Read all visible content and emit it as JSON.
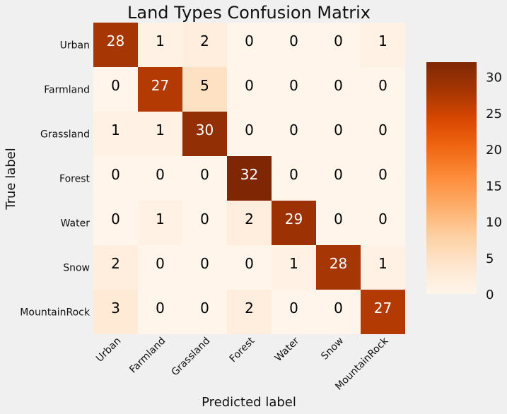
{
  "chart_data": {
    "type": "heatmap",
    "title": "Land Types Confusion Matrix",
    "xlabel": "Predicted label",
    "ylabel": "True label",
    "x_categories": [
      "Urban",
      "Farmland",
      "Grassland",
      "Forest",
      "Water",
      "Snow",
      "MountainRock"
    ],
    "y_categories": [
      "Urban",
      "Farmland",
      "Grassland",
      "Forest",
      "Water",
      "Snow",
      "MountainRock"
    ],
    "values": [
      [
        28,
        1,
        2,
        0,
        0,
        0,
        1
      ],
      [
        0,
        27,
        5,
        0,
        0,
        0,
        0
      ],
      [
        1,
        1,
        30,
        0,
        0,
        0,
        0
      ],
      [
        0,
        0,
        0,
        32,
        0,
        0,
        0
      ],
      [
        0,
        1,
        0,
        2,
        29,
        0,
        0
      ],
      [
        2,
        0,
        0,
        0,
        1,
        28,
        1
      ],
      [
        3,
        0,
        0,
        2,
        0,
        0,
        27
      ]
    ],
    "colormap": "Oranges",
    "vmin": 0,
    "vmax": 32,
    "colorbar_ticks": [
      0,
      5,
      10,
      15,
      20,
      25,
      30
    ],
    "grid": false
  }
}
